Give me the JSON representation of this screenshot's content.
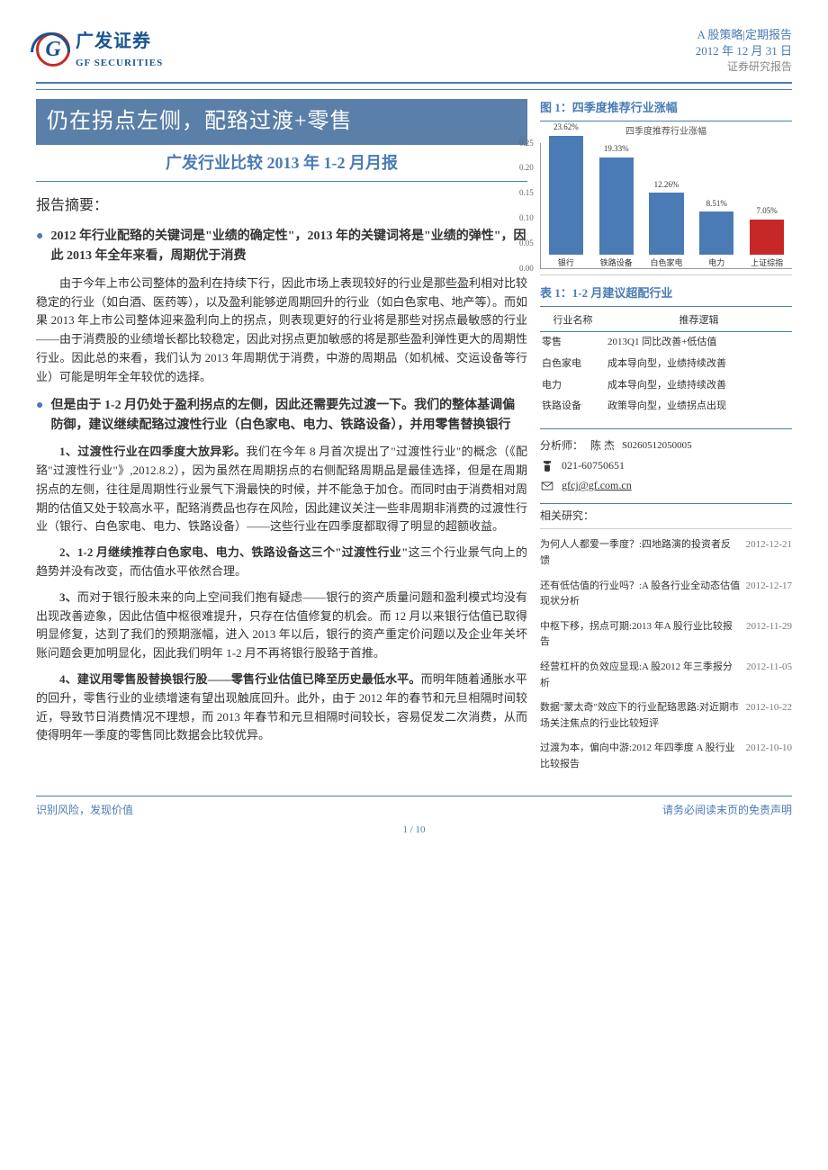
{
  "logo": {
    "cn": "广发证券",
    "en": "GF SECURITIES"
  },
  "doc_meta": {
    "line1": "A 股策略|定期报告",
    "line2": "2012 年 12 月 31 日",
    "line3": "证券研究报告"
  },
  "title": "仍在拐点左侧，配臵过渡+零售",
  "subtitle": "广发行业比较 2013 年 1-2 月月报",
  "abstract_h": "报告摘要：",
  "bullets": [
    "2012 年行业配臵的关键词是\"业绩的确定性\"，2013 年的关键词将是\"业绩的弹性\"，因此 2013 年全年来看，周期优于消费",
    "但是由于 1-2 月仍处于盈利拐点的左侧，因此还需要先过渡一下。我们的整体基调偏防御，建议继续配臵过渡性行业（白色家电、电力、铁路设备），并用零售替换银行"
  ],
  "para1": "由于今年上市公司整体的盈利在持续下行，因此市场上表现较好的行业是那些盈利相对比较稳定的行业（如白酒、医药等），以及盈利能够逆周期回升的行业（如白色家电、地产等）。而如果 2013 年上市公司整体迎来盈利向上的拐点，则表现更好的行业将是那些对拐点最敏感的行业——由于消费股的业绩增长都比较稳定，因此对拐点更加敏感的将是那些盈利弹性更大的周期性行业。因此总的来看，我们认为 2013 年周期优于消费，中游的周期品（如机械、交运设备等行业）可能是明年全年较优的选择。",
  "numbered": [
    {
      "lead": "1、过渡性行业在四季度大放异彩。",
      "text": "我们在今年 8 月首次提出了\"过渡性行业\"的概念（《配臵\"过渡性行业\"》,2012.8.2），因为虽然在周期拐点的右侧配臵周期品是最佳选择，但是在周期拐点的左侧，往往是周期性行业景气下滑最快的时候，并不能急于加仓。而同时由于消费相对周期的估值又处于较高水平，配臵消费品也存在风险，因此建议关注一些非周期非消费的过渡性行业（银行、白色家电、电力、铁路设备）——这些行业在四季度都取得了明显的超额收益。"
    },
    {
      "lead": "2、1-2 月继续推荐白色家电、电力、铁路设备这三个\"过渡性行业\"",
      "text": "这三个行业景气向上的趋势并没有改变，而估值水平依然合理。"
    },
    {
      "lead": "3、",
      "text": "而对于银行股未来的向上空间我们抱有疑虑——银行的资产质量问题和盈利模式均没有出现改善迹象，因此估值中枢很难提升，只存在估值修复的机会。而 12 月以来银行估值已取得明显修复，达到了我们的预期涨幅，进入 2013 年以后，银行的资产重定价问题以及企业年关坏账问题会更加明显化，因此我们明年 1-2 月不再将银行股臵于首推。"
    },
    {
      "lead": "4、建议用零售股替换银行股——零售行业估值已降至历史最低水平。",
      "text": "而明年随着通胀水平的回升，零售行业的业绩增速有望出现触底回升。此外，由于 2012 年的春节和元旦相隔时间较近，导致节日消费情况不理想，而 2013 年春节和元旦相隔时间较长，容易促发二次消费，从而使得明年一季度的零售同比数据会比较优异。"
    }
  ],
  "chart": {
    "heading": "图 1：四季度推荐行业涨幅",
    "title": "四季度推荐行业涨幅",
    "ymax": 0.25,
    "yticks": [
      0,
      0.05,
      0.1,
      0.15,
      0.2,
      0.25
    ],
    "bars": [
      {
        "label": "银行",
        "value": 23.62,
        "color": "#4a7bb5"
      },
      {
        "label": "铁路设备",
        "value": 19.33,
        "color": "#4a7bb5"
      },
      {
        "label": "白色家电",
        "value": 12.26,
        "color": "#4a7bb5"
      },
      {
        "label": "电力",
        "value": 8.51,
        "color": "#4a7bb5"
      },
      {
        "label": "上证综指",
        "value": 7.05,
        "color": "#c62828"
      }
    ]
  },
  "table": {
    "heading": "表 1：1-2 月建议超配行业",
    "cols": [
      "行业名称",
      "推荐逻辑"
    ],
    "rows": [
      [
        "零售",
        "2013Q1 同比改善+低估值"
      ],
      [
        "白色家电",
        "成本导向型，业绩持续改善"
      ],
      [
        "电力",
        "成本导向型，业绩持续改善"
      ],
      [
        "铁路设备",
        "政策导向型，业绩拐点出现"
      ]
    ]
  },
  "analyst": {
    "label": "分析师：",
    "name": "陈 杰",
    "code": "S0260512050005",
    "phone": "021-60750651",
    "email": "gfcj@gf.com.cn"
  },
  "related": {
    "heading": "相关研究：",
    "items": [
      {
        "t": "为何人人都爱一季度？:四地路演的投资者反馈",
        "d": "2012-12-21"
      },
      {
        "t": "还有低估值的行业吗？:A 股各行业全动态估值现状分析",
        "d": "2012-12-17"
      },
      {
        "t": "中枢下移，拐点可期:2013 年A 股行业比较报告",
        "d": "2012-11-29"
      },
      {
        "t": "经营杠杆的负效应显现:A 股2012 年三季报分析",
        "d": "2012-11-05"
      },
      {
        "t": "数据\"蒙太奇\"效应下的行业配臵思路:对近期市场关注焦点的行业比较短评",
        "d": "2012-10-22"
      },
      {
        "t": "过渡为本，偏向中游:2012 年四季度 A 股行业比较报告",
        "d": "2012-10-10"
      }
    ]
  },
  "footer": {
    "left": "识别风险，发现价值",
    "right": "请务必阅读末页的免责声明",
    "page": "1 / 10"
  }
}
